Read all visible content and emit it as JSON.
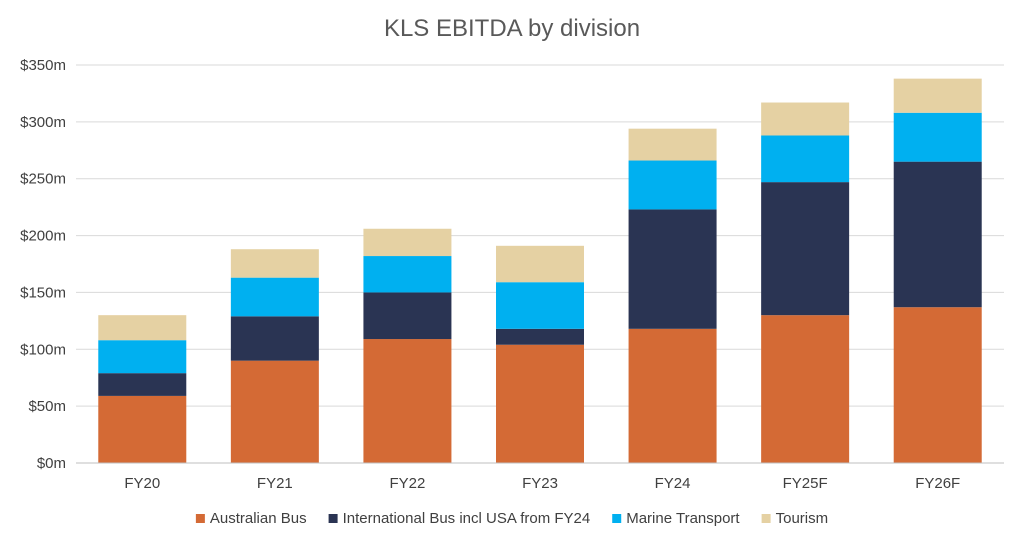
{
  "chart_data": {
    "type": "bar",
    "stacked": true,
    "title": "KLS EBITDA by division",
    "xlabel": "",
    "ylabel": "",
    "categories": [
      "FY20",
      "FY21",
      "FY22",
      "FY23",
      "FY24",
      "FY25F",
      "FY26F"
    ],
    "ylim": [
      0,
      350
    ],
    "yticks": [
      0,
      50,
      100,
      150,
      200,
      250,
      300,
      350
    ],
    "ytick_labels": [
      "$0m",
      "$50m",
      "$100m",
      "$150m",
      "$200m",
      "$250m",
      "$300m",
      "$350m"
    ],
    "grid": true,
    "legend_position": "bottom",
    "series": [
      {
        "name": "Australian Bus",
        "color": "#D46A35",
        "values": [
          59,
          90,
          109,
          104,
          118,
          130,
          137
        ]
      },
      {
        "name": "International Bus incl USA from FY24",
        "color": "#2A3453",
        "values": [
          20,
          39,
          41,
          14,
          105,
          117,
          128
        ]
      },
      {
        "name": "Marine Transport",
        "color": "#00B0F0",
        "values": [
          29,
          34,
          32,
          41,
          43,
          41,
          43
        ]
      },
      {
        "name": "Tourism",
        "color": "#E5D1A3",
        "values": [
          22,
          25,
          24,
          32,
          28,
          29,
          30
        ]
      }
    ]
  }
}
